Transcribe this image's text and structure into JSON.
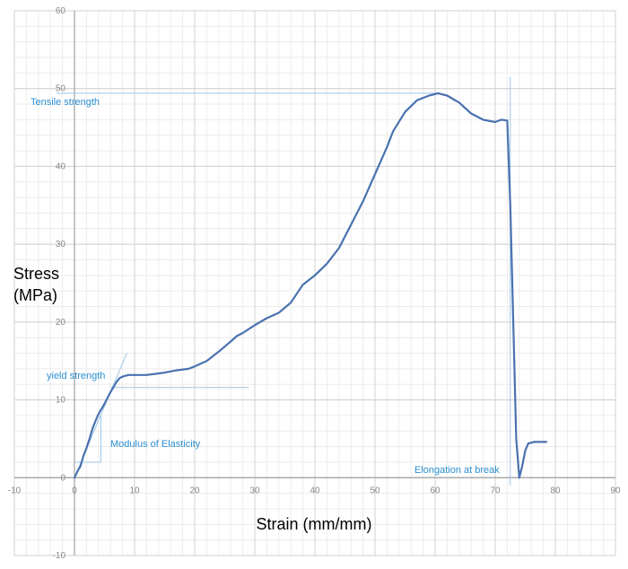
{
  "chart_data": {
    "type": "line",
    "title": "",
    "xlabel": "Strain (mm/mm)",
    "ylabel_lines": [
      "Stress",
      "(MPa)"
    ],
    "xlim": [
      -10,
      90
    ],
    "ylim": [
      -10,
      60
    ],
    "x_ticks": [
      -10,
      0,
      10,
      20,
      30,
      40,
      50,
      60,
      70,
      80,
      90
    ],
    "y_ticks": [
      -10,
      0,
      10,
      20,
      30,
      40,
      50,
      60
    ],
    "x_minor_step": 2,
    "y_minor_step": 2,
    "grid": true,
    "colors": {
      "series": "#4a72b0",
      "annotation_text": "#2a8fd0",
      "annotation_line": "#9cc6e8",
      "grid_major": "#d0d0d0",
      "grid_minor": "#ececec",
      "axis": "#a0a0a0"
    },
    "series": [
      {
        "points": [
          [
            0,
            0
          ],
          [
            0.5,
            0.8
          ],
          [
            1,
            1.5
          ],
          [
            1.5,
            2.8
          ],
          [
            2,
            3.8
          ],
          [
            2.5,
            5
          ],
          [
            3,
            6.3
          ],
          [
            3.5,
            7.3
          ],
          [
            4,
            8.2
          ],
          [
            5,
            9.5
          ],
          [
            6,
            11
          ],
          [
            7,
            12.3
          ],
          [
            7.5,
            12.8
          ],
          [
            8,
            13
          ],
          [
            9,
            13.2
          ],
          [
            10,
            13.2
          ],
          [
            12,
            13.2
          ],
          [
            14,
            13.4
          ],
          [
            15,
            13.5
          ],
          [
            17,
            13.8
          ],
          [
            19,
            14
          ],
          [
            20,
            14.3
          ],
          [
            22,
            15
          ],
          [
            24,
            16.2
          ],
          [
            26,
            17.5
          ],
          [
            27,
            18.2
          ],
          [
            28,
            18.6
          ],
          [
            30,
            19.6
          ],
          [
            32,
            20.5
          ],
          [
            34,
            21.2
          ],
          [
            36,
            22.5
          ],
          [
            38,
            24.8
          ],
          [
            40,
            26
          ],
          [
            42,
            27.5
          ],
          [
            44,
            29.5
          ],
          [
            46,
            32.5
          ],
          [
            48,
            35.5
          ],
          [
            50,
            39
          ],
          [
            52,
            42.5
          ],
          [
            53,
            44.5
          ],
          [
            55,
            47
          ],
          [
            57,
            48.5
          ],
          [
            59,
            49.1
          ],
          [
            60.5,
            49.4
          ],
          [
            62,
            49.1
          ],
          [
            64,
            48.2
          ],
          [
            66,
            46.8
          ],
          [
            68,
            46
          ],
          [
            70,
            45.7
          ],
          [
            71,
            46
          ],
          [
            72,
            45.9
          ],
          [
            72.5,
            35
          ],
          [
            73,
            20
          ],
          [
            73.5,
            5
          ],
          [
            74,
            0
          ],
          [
            74.5,
            1.5
          ],
          [
            75,
            3.5
          ],
          [
            75.5,
            4.4
          ],
          [
            76.5,
            4.6
          ],
          [
            78.5,
            4.6
          ]
        ]
      }
    ],
    "annotations": {
      "tensile_strength": {
        "text": "Tensile strength",
        "value": 49.4
      },
      "yield_strength": {
        "text": "yield strength",
        "value": 11.6
      },
      "modulus": {
        "text": "Modulus of Elasticity"
      },
      "elongation": {
        "text": "Elongation at break",
        "value": 72.5
      }
    }
  }
}
